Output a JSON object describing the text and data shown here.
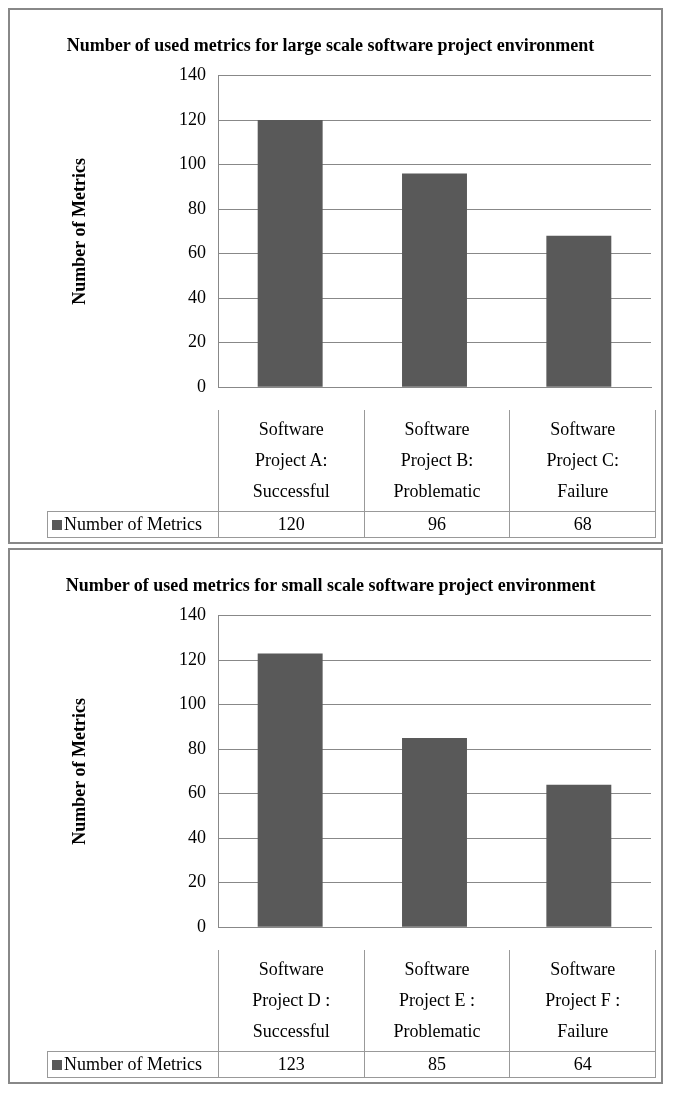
{
  "chart_data": [
    {
      "type": "bar",
      "title": "Number of used metrics for large scale software project environment",
      "ylabel": "Number of Metrics",
      "categories": [
        "Software Project A: Successful",
        "Software Project B: Problematic",
        "Software Project C: Failure"
      ],
      "series": [
        {
          "name": "Number of Metrics",
          "color": "#595959",
          "values": [
            120,
            96,
            68
          ]
        }
      ],
      "ylim": [
        0,
        140
      ],
      "yticks": [
        0,
        20,
        40,
        60,
        80,
        100,
        120,
        140
      ],
      "grid": "y",
      "legend": "bottom",
      "data_labels": true
    },
    {
      "type": "bar",
      "title": "Number of used metrics for small scale software project environment",
      "ylabel": "Number of Metrics",
      "categories": [
        "Software Project D : Successful",
        "Software Project E : Problematic",
        "Software Project F : Failure"
      ],
      "series": [
        {
          "name": "Number of Metrics",
          "color": "#595959",
          "values": [
            123,
            85,
            64
          ]
        }
      ],
      "ylim": [
        0,
        140
      ],
      "yticks": [
        0,
        20,
        40,
        60,
        80,
        100,
        120,
        140
      ],
      "grid": "y",
      "legend": "bottom",
      "data_labels": true
    }
  ]
}
